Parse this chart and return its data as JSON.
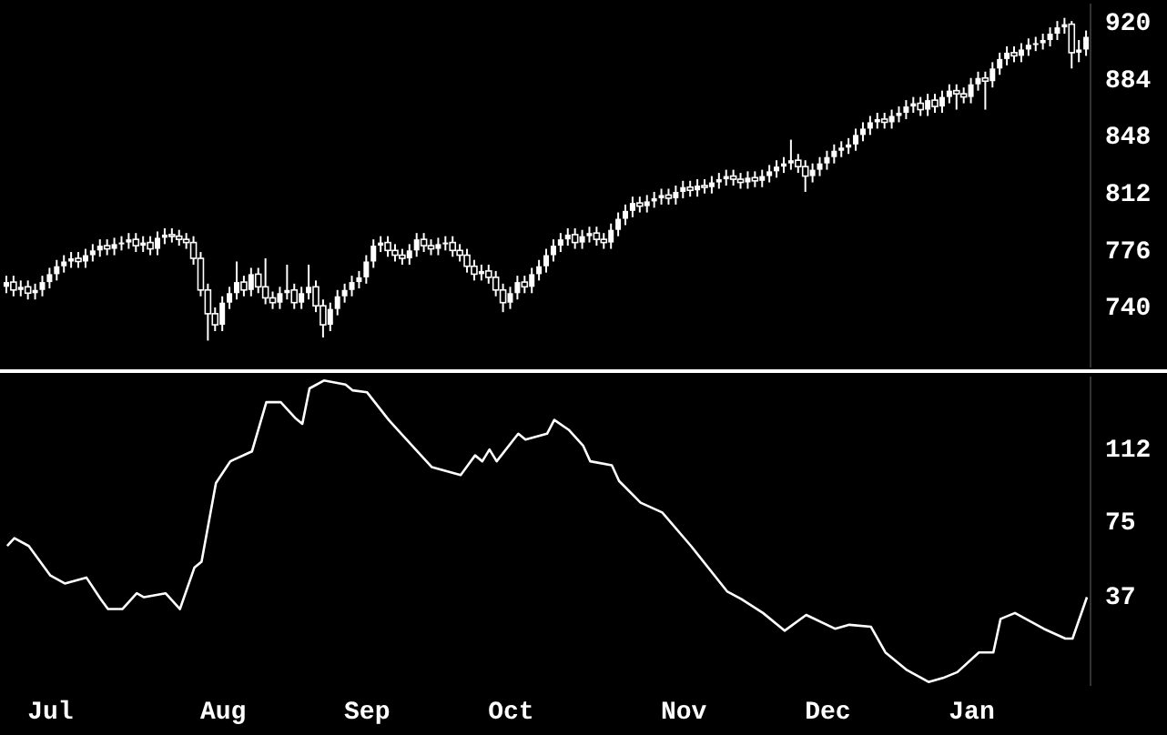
{
  "chart_data": [
    {
      "type": "candlestick",
      "categories": [
        null,
        null,
        null,
        null,
        null,
        null,
        null,
        null,
        null,
        null,
        null,
        null,
        null,
        null,
        null,
        null,
        null,
        null,
        null,
        null,
        null,
        null,
        null,
        null,
        null,
        null,
        null,
        null,
        null,
        null,
        null,
        null,
        null,
        null,
        null,
        null,
        null,
        null,
        null,
        null,
        null,
        null,
        null,
        null,
        null,
        null,
        null,
        null,
        null,
        null,
        null,
        null,
        null,
        null,
        null,
        null,
        null,
        null,
        null,
        null,
        null,
        null,
        null,
        null,
        null,
        null,
        null,
        null,
        null,
        null,
        null,
        null,
        null,
        null,
        null,
        null,
        null,
        null,
        null,
        null,
        null,
        null,
        null,
        null,
        null,
        null,
        null,
        null,
        null,
        null,
        null,
        null,
        null,
        null,
        null,
        null,
        null,
        null,
        null,
        null,
        null,
        null,
        null,
        null,
        null,
        null,
        null,
        null,
        null,
        null,
        null,
        null,
        null,
        null,
        null,
        null,
        null,
        null,
        null,
        null,
        null,
        null,
        null,
        null,
        null,
        null,
        null,
        null,
        null,
        null,
        null,
        null,
        null,
        null,
        null,
        null,
        null,
        null,
        null,
        null,
        null,
        null,
        null,
        null,
        null,
        null,
        null,
        null,
        null,
        null,
        null
      ],
      "ohlc": [
        [
          752,
          759,
          748,
          755
        ],
        [
          755,
          759,
          746,
          750
        ],
        [
          750,
          756,
          746,
          752
        ],
        [
          752,
          756,
          744,
          748
        ],
        [
          748,
          754,
          744,
          750
        ],
        [
          750,
          759,
          746,
          755
        ],
        [
          755,
          764,
          751,
          760
        ],
        [
          760,
          769,
          756,
          765
        ],
        [
          765,
          772,
          761,
          768
        ],
        [
          768,
          774,
          764,
          770
        ],
        [
          770,
          774,
          764,
          768
        ],
        [
          768,
          776,
          764,
          772
        ],
        [
          772,
          779,
          768,
          775
        ],
        [
          775,
          782,
          771,
          778
        ],
        [
          778,
          782,
          772,
          776
        ],
        [
          776,
          783,
          772,
          779
        ],
        [
          779,
          784,
          775,
          780
        ],
        [
          780,
          786,
          776,
          782
        ],
        [
          782,
          786,
          774,
          778
        ],
        [
          778,
          784,
          774,
          780
        ],
        [
          780,
          784,
          772,
          776
        ],
        [
          776,
          787,
          772,
          783
        ],
        [
          783,
          789,
          779,
          785
        ],
        [
          785,
          789,
          780,
          784
        ],
        [
          784,
          788,
          778,
          782
        ],
        [
          782,
          786,
          776,
          780
        ],
        [
          780,
          784,
          766,
          770
        ],
        [
          770,
          774,
          746,
          750
        ],
        [
          750,
          754,
          718,
          735
        ],
        [
          735,
          739,
          724,
          728
        ],
        [
          728,
          746,
          724,
          742
        ],
        [
          742,
          752,
          738,
          748
        ],
        [
          748,
          768,
          744,
          755
        ],
        [
          755,
          759,
          746,
          750
        ],
        [
          750,
          764,
          746,
          760
        ],
        [
          760,
          764,
          748,
          752
        ],
        [
          752,
          770,
          741,
          745
        ],
        [
          745,
          749,
          738,
          742
        ],
        [
          742,
          752,
          738,
          748
        ],
        [
          748,
          766,
          744,
          750
        ],
        [
          750,
          754,
          738,
          742
        ],
        [
          742,
          752,
          738,
          748
        ],
        [
          748,
          766,
          744,
          752
        ],
        [
          752,
          756,
          736,
          740
        ],
        [
          740,
          744,
          720,
          728
        ],
        [
          728,
          742,
          724,
          738
        ],
        [
          738,
          750,
          734,
          746
        ],
        [
          746,
          754,
          742,
          750
        ],
        [
          750,
          759,
          746,
          755
        ],
        [
          755,
          762,
          751,
          758
        ],
        [
          758,
          772,
          754,
          768
        ],
        [
          768,
          782,
          764,
          778
        ],
        [
          778,
          784,
          774,
          780
        ],
        [
          780,
          784,
          771,
          775
        ],
        [
          775,
          779,
          768,
          772
        ],
        [
          772,
          776,
          766,
          770
        ],
        [
          770,
          779,
          766,
          775
        ],
        [
          775,
          786,
          771,
          782
        ],
        [
          782,
          786,
          774,
          778
        ],
        [
          778,
          782,
          772,
          776
        ],
        [
          776,
          783,
          772,
          779
        ],
        [
          779,
          784,
          775,
          780
        ],
        [
          780,
          784,
          771,
          775
        ],
        [
          775,
          779,
          768,
          772
        ],
        [
          772,
          776,
          761,
          765
        ],
        [
          765,
          769,
          756,
          760
        ],
        [
          760,
          766,
          756,
          762
        ],
        [
          762,
          766,
          754,
          758
        ],
        [
          758,
          762,
          746,
          750
        ],
        [
          750,
          754,
          736,
          742
        ],
        [
          742,
          752,
          738,
          748
        ],
        [
          748,
          759,
          744,
          755
        ],
        [
          755,
          759,
          748,
          752
        ],
        [
          752,
          764,
          748,
          760
        ],
        [
          760,
          769,
          756,
          765
        ],
        [
          765,
          776,
          761,
          772
        ],
        [
          772,
          782,
          768,
          778
        ],
        [
          778,
          786,
          774,
          782
        ],
        [
          782,
          789,
          778,
          785
        ],
        [
          785,
          789,
          776,
          780
        ],
        [
          780,
          788,
          776,
          784
        ],
        [
          784,
          790,
          780,
          786
        ],
        [
          786,
          790,
          778,
          782
        ],
        [
          782,
          786,
          776,
          780
        ],
        [
          780,
          792,
          776,
          788
        ],
        [
          788,
          799,
          784,
          795
        ],
        [
          795,
          804,
          791,
          800
        ],
        [
          800,
          809,
          796,
          805
        ],
        [
          805,
          809,
          799,
          803
        ],
        [
          803,
          810,
          799,
          806
        ],
        [
          806,
          812,
          802,
          808
        ],
        [
          808,
          814,
          804,
          810
        ],
        [
          810,
          814,
          804,
          808
        ],
        [
          808,
          816,
          804,
          812
        ],
        [
          812,
          819,
          808,
          815
        ],
        [
          815,
          819,
          809,
          813
        ],
        [
          813,
          820,
          809,
          816
        ],
        [
          816,
          820,
          811,
          815
        ],
        [
          815,
          822,
          811,
          818
        ],
        [
          818,
          824,
          814,
          820
        ],
        [
          820,
          826,
          816,
          822
        ],
        [
          822,
          826,
          816,
          820
        ],
        [
          820,
          824,
          814,
          818
        ],
        [
          818,
          825,
          814,
          821
        ],
        [
          821,
          825,
          815,
          819
        ],
        [
          819,
          826,
          815,
          822
        ],
        [
          822,
          829,
          818,
          825
        ],
        [
          825,
          832,
          821,
          828
        ],
        [
          828,
          834,
          824,
          830
        ],
        [
          830,
          845,
          826,
          832
        ],
        [
          832,
          836,
          824,
          828
        ],
        [
          828,
          832,
          812,
          822
        ],
        [
          822,
          830,
          818,
          826
        ],
        [
          826,
          834,
          822,
          830
        ],
        [
          830,
          838,
          826,
          834
        ],
        [
          834,
          842,
          830,
          838
        ],
        [
          838,
          844,
          834,
          840
        ],
        [
          840,
          846,
          836,
          842
        ],
        [
          842,
          852,
          838,
          848
        ],
        [
          848,
          856,
          844,
          852
        ],
        [
          852,
          860,
          848,
          856
        ],
        [
          856,
          862,
          852,
          858
        ],
        [
          858,
          862,
          852,
          856
        ],
        [
          856,
          864,
          852,
          860
        ],
        [
          860,
          866,
          856,
          862
        ],
        [
          862,
          870,
          858,
          866
        ],
        [
          866,
          872,
          862,
          868
        ],
        [
          868,
          872,
          860,
          864
        ],
        [
          864,
          874,
          860,
          870
        ],
        [
          870,
          874,
          862,
          866
        ],
        [
          866,
          876,
          862,
          872
        ],
        [
          872,
          880,
          868,
          876
        ],
        [
          876,
          880,
          864,
          874
        ],
        [
          874,
          878,
          868,
          872
        ],
        [
          872,
          884,
          868,
          880
        ],
        [
          880,
          888,
          876,
          884
        ],
        [
          884,
          888,
          864,
          882
        ],
        [
          882,
          894,
          878,
          890
        ],
        [
          890,
          900,
          886,
          896
        ],
        [
          896,
          904,
          892,
          900
        ],
        [
          900,
          904,
          894,
          898
        ],
        [
          898,
          906,
          894,
          902
        ],
        [
          902,
          909,
          898,
          905
        ],
        [
          905,
          910,
          901,
          906
        ],
        [
          906,
          912,
          902,
          908
        ],
        [
          908,
          916,
          904,
          912
        ],
        [
          912,
          920,
          908,
          916
        ],
        [
          916,
          922,
          912,
          918
        ],
        [
          918,
          920,
          890,
          900
        ],
        [
          900,
          908,
          894,
          902
        ],
        [
          902,
          914,
          898,
          910
        ]
      ],
      "color": "#ffffff",
      "ylim": [
        701,
        931
      ],
      "yticks": [
        740,
        776,
        812,
        848,
        884,
        920
      ],
      "tick_labels": "y"
    },
    {
      "type": "line",
      "categories": [
        null,
        null,
        null,
        null,
        null,
        null,
        "Jul",
        null,
        null,
        null,
        null,
        null,
        null,
        null,
        null,
        null,
        null,
        null,
        null,
        null,
        null,
        null,
        null,
        null,
        null,
        null,
        null,
        null,
        null,
        null,
        "Aug",
        null,
        null,
        null,
        null,
        null,
        null,
        null,
        null,
        null,
        null,
        null,
        null,
        null,
        null,
        null,
        null,
        null,
        null,
        null,
        "Sep",
        null,
        null,
        null,
        null,
        null,
        null,
        null,
        null,
        null,
        null,
        null,
        null,
        null,
        null,
        null,
        null,
        null,
        null,
        null,
        "Oct",
        null,
        null,
        null,
        null,
        null,
        null,
        null,
        null,
        null,
        null,
        null,
        null,
        null,
        null,
        null,
        null,
        null,
        null,
        null,
        null,
        null,
        null,
        null,
        "Nov",
        null,
        null,
        null,
        null,
        null,
        null,
        null,
        null,
        null,
        null,
        null,
        null,
        null,
        null,
        null,
        null,
        null,
        null,
        null,
        "Dec",
        null,
        null,
        null,
        null,
        null,
        null,
        null,
        null,
        null,
        null,
        null,
        null,
        null,
        null,
        null,
        null,
        null,
        null,
        null,
        "Jan",
        null,
        null,
        null,
        null,
        null,
        null,
        null,
        null,
        null,
        null,
        null,
        null,
        null,
        null,
        null,
        null
      ],
      "values": [
        62,
        66,
        null,
        62,
        null,
        null,
        47,
        null,
        43,
        null,
        null,
        46,
        null,
        35,
        30,
        null,
        30,
        null,
        38,
        36,
        null,
        null,
        38,
        null,
        30,
        null,
        51,
        54,
        null,
        94,
        null,
        105,
        null,
        null,
        110,
        null,
        135,
        null,
        135,
        null,
        127,
        124,
        142,
        null,
        146,
        null,
        null,
        144,
        141,
        null,
        140,
        null,
        null,
        126,
        122,
        null,
        null,
        110,
        null,
        102,
        null,
        null,
        null,
        98,
        null,
        108,
        105,
        111,
        105,
        null,
        null,
        119,
        116,
        null,
        null,
        119,
        126,
        null,
        121,
        null,
        113,
        105,
        null,
        null,
        103,
        95,
        null,
        null,
        84,
        null,
        null,
        79,
        null,
        null,
        null,
        62,
        null,
        null,
        null,
        null,
        39,
        null,
        35,
        null,
        null,
        28,
        null,
        null,
        19,
        null,
        null,
        27,
        null,
        null,
        null,
        20,
        null,
        22,
        null,
        null,
        21,
        null,
        8,
        null,
        null,
        -1,
        null,
        null,
        -7,
        null,
        -5,
        null,
        -2,
        null,
        null,
        8,
        null,
        8,
        25,
        null,
        28,
        null,
        null,
        null,
        20,
        null,
        null,
        15,
        15,
        null,
        36
      ],
      "color": "#ffffff",
      "ylim": [
        -9,
        148
      ],
      "yticks": [
        37,
        75,
        112
      ]
    }
  ]
}
